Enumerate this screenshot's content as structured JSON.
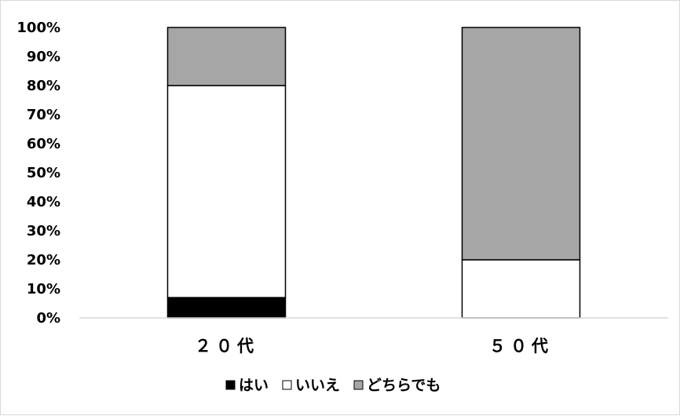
{
  "chart_data": {
    "type": "bar",
    "stacked": true,
    "percent": true,
    "categories": [
      "２０代",
      "５０代"
    ],
    "series": [
      {
        "name": "はい",
        "values": [
          7,
          0
        ],
        "color": "#000000"
      },
      {
        "name": "いいえ",
        "values": [
          73,
          20
        ],
        "color": "#ffffff"
      },
      {
        "name": "どちらでも",
        "values": [
          20,
          80
        ],
        "color": "#a6a6a6"
      }
    ],
    "ylim": [
      0,
      100
    ],
    "yticks": [
      "0%",
      "10%",
      "20%",
      "30%",
      "40%",
      "50%",
      "60%",
      "70%",
      "80%",
      "90%",
      "100%"
    ],
    "grid": false,
    "legend": "bottom",
    "title": "",
    "xlabel": "",
    "ylabel": ""
  }
}
